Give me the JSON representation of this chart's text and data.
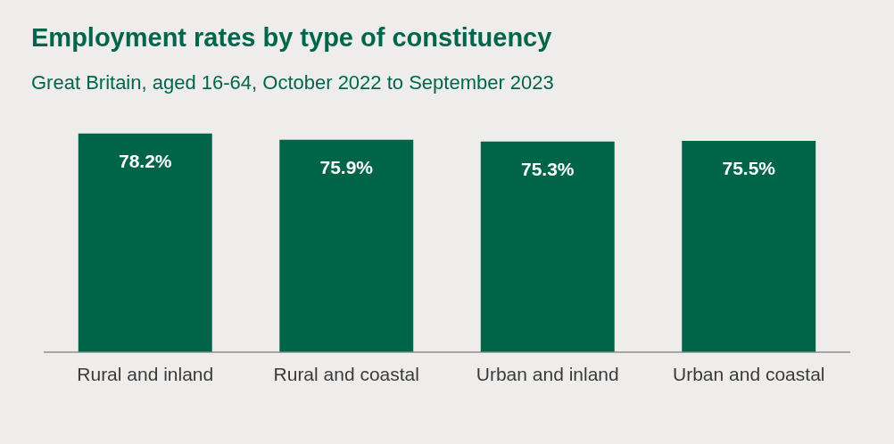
{
  "chart_data": {
    "type": "bar",
    "title": "Employment rates by type of constituency",
    "subtitle": "Great Britain, aged 16-64, October 2022 to September 2023",
    "categories": [
      "Rural and inland",
      "Rural and coastal",
      "Urban and inland",
      "Urban and coastal"
    ],
    "values": [
      78.2,
      75.9,
      75.3,
      75.5
    ],
    "value_labels": [
      "78.2%",
      "75.9%",
      "75.3%",
      "75.5%"
    ],
    "color": "#006548",
    "tick_labels": "x",
    "grid": false,
    "legend": false
  }
}
